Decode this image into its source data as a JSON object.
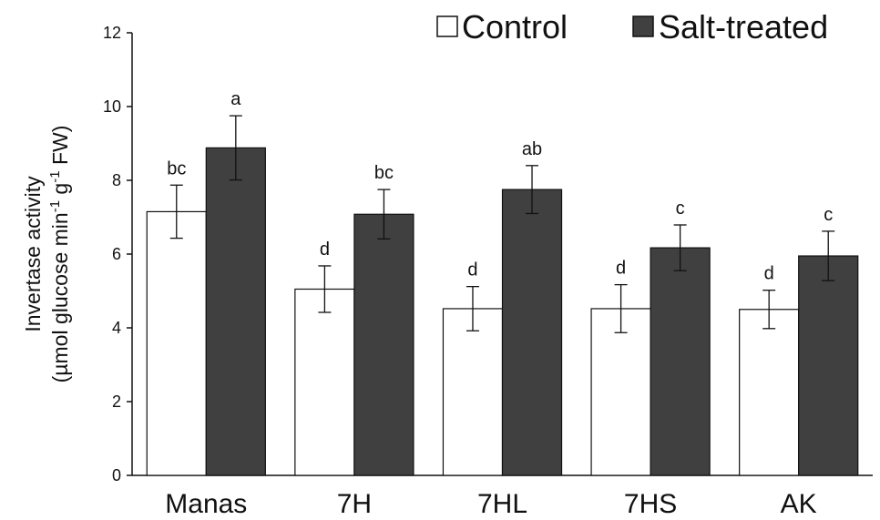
{
  "chart_data": {
    "type": "bar",
    "categories": [
      "Manas",
      "7H",
      "7HL",
      "7HS",
      "AK"
    ],
    "series": [
      {
        "name": "Control",
        "color": "#ffffff",
        "values": [
          7.15,
          5.05,
          4.52,
          4.52,
          4.5
        ],
        "errors": [
          0.72,
          0.63,
          0.6,
          0.65,
          0.52
        ],
        "letters": [
          "bc",
          "d",
          "d",
          "d",
          "d"
        ]
      },
      {
        "name": "Salt-treated",
        "color": "#404040",
        "values": [
          8.88,
          7.08,
          7.75,
          6.17,
          5.95
        ],
        "errors": [
          0.87,
          0.67,
          0.65,
          0.62,
          0.67
        ],
        "letters": [
          "a",
          "bc",
          "ab",
          "c",
          "c"
        ]
      }
    ],
    "ylabel_line1": "Invertase activity",
    "ylabel_line2_parts": [
      "(µmol glucose min",
      "-1",
      " g",
      "-1",
      " FW)"
    ],
    "ylim": [
      0,
      12
    ],
    "yticks": [
      0,
      2,
      4,
      6,
      8,
      10,
      12
    ],
    "legend_position": "top-right",
    "grid": false
  }
}
